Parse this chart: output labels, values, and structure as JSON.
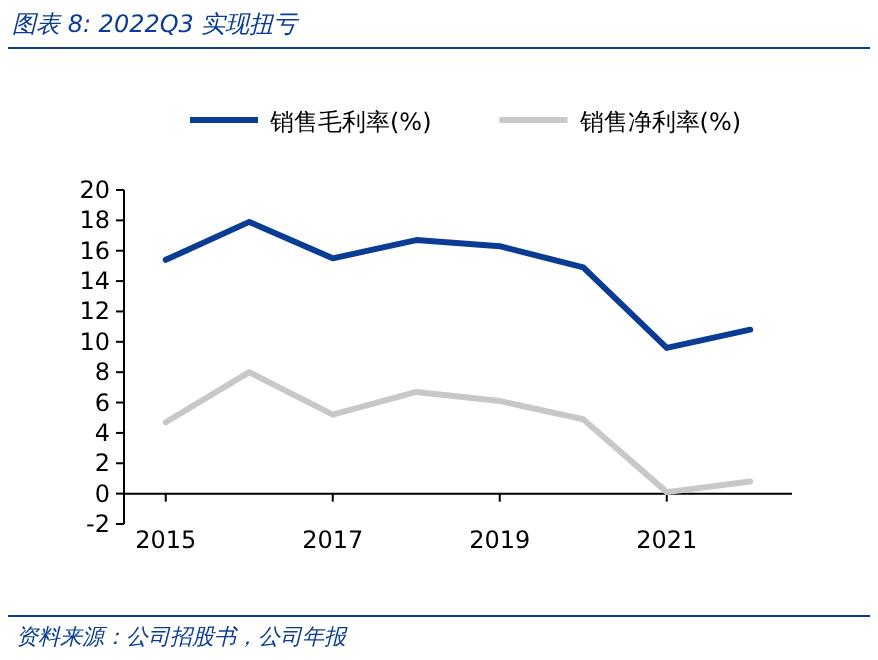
{
  "chart_data": {
    "type": "line",
    "title": "图表 8:  2022Q3 实现扭亏",
    "annotations": [
      "资料来源：公司招股书，公司年报"
    ],
    "x": [
      2015,
      2016,
      2017,
      2018,
      2019,
      2020,
      2021,
      2022
    ],
    "series": [
      {
        "name": "销售毛利率(%)",
        "color": "#0b3c94",
        "values": [
          15.4,
          17.9,
          15.5,
          16.7,
          16.3,
          14.9,
          9.6,
          10.8
        ]
      },
      {
        "name": "销售净利率(%)",
        "color": "#c8c8c8",
        "values": [
          4.7,
          8.0,
          5.2,
          6.7,
          6.1,
          4.9,
          0.1,
          0.8
        ]
      }
    ],
    "xlim": [
      2014.5,
      2022.5
    ],
    "ylim": [
      -2,
      20
    ],
    "xticks": [
      2015,
      2017,
      2019,
      2021
    ],
    "yticks": [
      -2,
      0,
      2,
      4,
      6,
      8,
      10,
      12,
      14,
      16,
      18,
      20
    ],
    "legend": "top"
  }
}
